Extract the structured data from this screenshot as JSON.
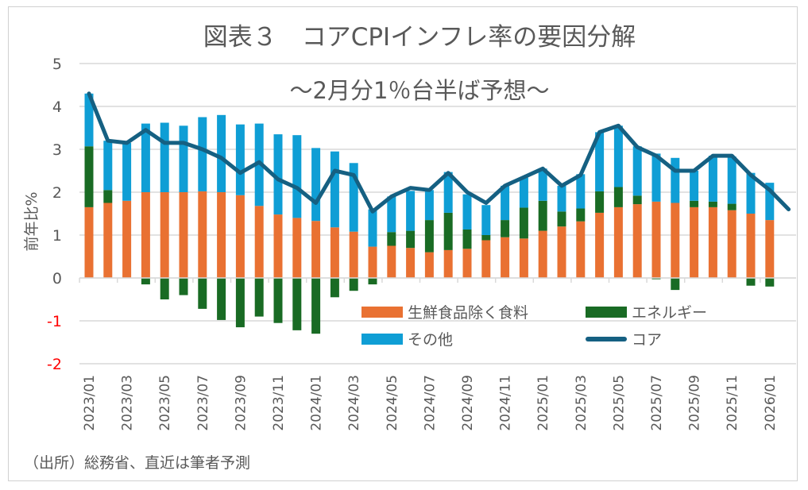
{
  "chart_data": {
    "type": "bar",
    "title": "図表３　コアCPIインフレ率の要因分解",
    "subtitle": "～2月分1％台半ば予想～",
    "ylabel": "前年比%",
    "xlabel": "",
    "ylim": [
      -2,
      5
    ],
    "yticks": [
      5,
      4,
      3,
      2,
      1,
      0,
      -1,
      -2
    ],
    "grid": true,
    "legend_position": "bottom-center",
    "categories": [
      "2023/01",
      "2023/02",
      "2023/03",
      "2023/04",
      "2023/05",
      "2023/06",
      "2023/07",
      "2023/08",
      "2023/09",
      "2023/10",
      "2023/11",
      "2023/12",
      "2024/01",
      "2024/02",
      "2024/03",
      "2024/04",
      "2024/05",
      "2024/06",
      "2024/07",
      "2024/08",
      "2024/09",
      "2024/10",
      "2024/11",
      "2024/12",
      "2025/01",
      "2025/02",
      "2025/03",
      "2025/04",
      "2025/05",
      "2025/06",
      "2025/07",
      "2025/08",
      "2025/09",
      "2025/10",
      "2025/11",
      "2025/12",
      "2026/01",
      "2026/02"
    ],
    "xtick_labels": [
      "2023/01",
      "2023/03",
      "2023/05",
      "2023/07",
      "2023/09",
      "2023/11",
      "2024/01",
      "2024/03",
      "2024/05",
      "2024/07",
      "2024/09",
      "2024/11",
      "2025/01",
      "2025/03",
      "2025/05",
      "2025/07",
      "2025/09",
      "2025/11",
      "2026/01"
    ],
    "series": [
      {
        "name": "生鮮食品除く食料",
        "kind": "bar",
        "color": "#E97132",
        "values": [
          1.65,
          1.75,
          1.8,
          2.0,
          2.0,
          2.0,
          2.02,
          2.0,
          1.93,
          1.68,
          1.48,
          1.4,
          1.33,
          1.18,
          1.08,
          0.73,
          0.75,
          0.7,
          0.6,
          0.65,
          0.68,
          0.88,
          0.95,
          0.92,
          1.1,
          1.2,
          1.32,
          1.52,
          1.65,
          1.72,
          1.78,
          1.75,
          1.65,
          1.65,
          1.58,
          1.5,
          1.35,
          null
        ]
      },
      {
        "name": "エネルギー",
        "kind": "bar",
        "color": "#196B24",
        "values": [
          1.42,
          0.3,
          0.0,
          -0.15,
          -0.5,
          -0.4,
          -0.72,
          -0.98,
          -1.15,
          -0.9,
          -1.05,
          -1.22,
          -1.3,
          -0.45,
          -0.3,
          -0.15,
          0.32,
          0.4,
          0.75,
          0.87,
          0.45,
          0.12,
          0.4,
          0.72,
          0.7,
          0.35,
          0.3,
          0.5,
          0.47,
          0.2,
          -0.03,
          -0.28,
          0.15,
          0.13,
          0.15,
          -0.18,
          -0.2,
          null
        ]
      },
      {
        "name": "その他",
        "kind": "bar",
        "color": "#0F9ED5",
        "values": [
          1.23,
          1.15,
          1.35,
          1.6,
          1.62,
          1.55,
          1.73,
          1.8,
          1.65,
          1.92,
          1.87,
          1.93,
          1.7,
          1.77,
          1.6,
          0.87,
          0.83,
          0.93,
          0.7,
          0.95,
          0.82,
          0.7,
          0.8,
          0.7,
          0.75,
          0.6,
          0.8,
          1.38,
          1.43,
          1.15,
          1.12,
          1.05,
          0.7,
          1.07,
          1.1,
          0.95,
          0.87,
          null
        ]
      },
      {
        "name": "コア",
        "kind": "line",
        "color": "#156082",
        "values": [
          4.3,
          3.2,
          3.15,
          3.45,
          3.15,
          3.15,
          3.0,
          2.8,
          2.45,
          2.7,
          2.3,
          2.1,
          1.75,
          2.5,
          2.4,
          1.55,
          1.9,
          2.1,
          2.05,
          2.45,
          2.0,
          1.75,
          2.15,
          2.35,
          2.55,
          2.15,
          2.4,
          3.4,
          3.55,
          3.05,
          2.85,
          2.5,
          2.5,
          2.85,
          2.85,
          2.4,
          2.05,
          1.6
        ]
      }
    ]
  },
  "footer": "（出所）総務省、直近は筆者予測",
  "negative_tick_color": "#FF0000"
}
